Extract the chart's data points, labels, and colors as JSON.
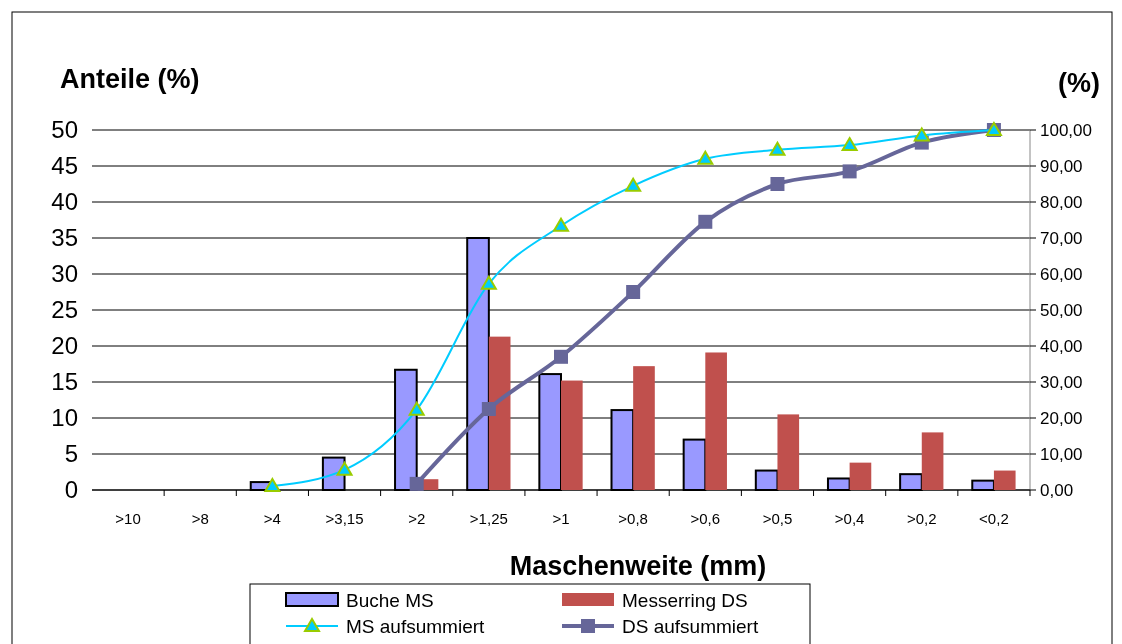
{
  "chart_data": {
    "type": "bar",
    "ylabel": "Anteile (%)",
    "y2label": "(%)",
    "xlabel": "Maschenweite (mm)",
    "categories": [
      ">10",
      ">8",
      ">4",
      ">3,15",
      ">2",
      ">1,25",
      ">1",
      ">0,8",
      ">0,6",
      ">0,5",
      ">0,4",
      ">0,2",
      "<0,2"
    ],
    "series": [
      {
        "name": "Buche MS",
        "color": "#9999ff",
        "values": [
          0,
          0,
          1.1,
          4.5,
          16.7,
          35,
          16.1,
          11.1,
          7,
          2.7,
          1.6,
          2.2,
          1.3
        ]
      },
      {
        "name": "Messerring DS",
        "color": "#c0504d",
        "values": [
          0,
          0,
          0,
          0,
          1.5,
          21.3,
          15.2,
          17.2,
          19.1,
          10.5,
          3.8,
          8,
          2.7
        ]
      },
      {
        "name": "MS aufsummiert",
        "type": "line",
        "axis": "y2",
        "color": "#00ccff",
        "marker": "triangle",
        "values": [
          null,
          null,
          1.1,
          5.6,
          22.3,
          57.3,
          73.4,
          84.5,
          92,
          94.5,
          95.8,
          98.5,
          100
        ]
      },
      {
        "name": "DS aufsummiert",
        "type": "line",
        "axis": "y2",
        "color": "#666699",
        "marker": "square",
        "values": [
          null,
          null,
          null,
          null,
          1.7,
          22.5,
          37,
          55,
          74.5,
          85,
          88.5,
          96.5,
          100
        ]
      }
    ],
    "ylim": [
      0,
      50
    ],
    "yticks": [
      0,
      5,
      10,
      15,
      20,
      25,
      30,
      35,
      40,
      45,
      50
    ],
    "y2lim": [
      0,
      100
    ],
    "y2ticks": [
      {
        "value": 0,
        "label": "0,00"
      },
      {
        "value": 10,
        "label": "10,00"
      },
      {
        "value": 20,
        "label": "20,00"
      },
      {
        "value": 30,
        "label": "30,00"
      },
      {
        "value": 40,
        "label": "40,00"
      },
      {
        "value": 50,
        "label": "50,00"
      },
      {
        "value": 60,
        "label": "60,00"
      },
      {
        "value": 70,
        "label": "70,00"
      },
      {
        "value": 80,
        "label": "80,00"
      },
      {
        "value": 90,
        "label": "90,00"
      },
      {
        "value": 100,
        "label": "100,00"
      }
    ],
    "grid": "y",
    "legend": "bottom"
  }
}
